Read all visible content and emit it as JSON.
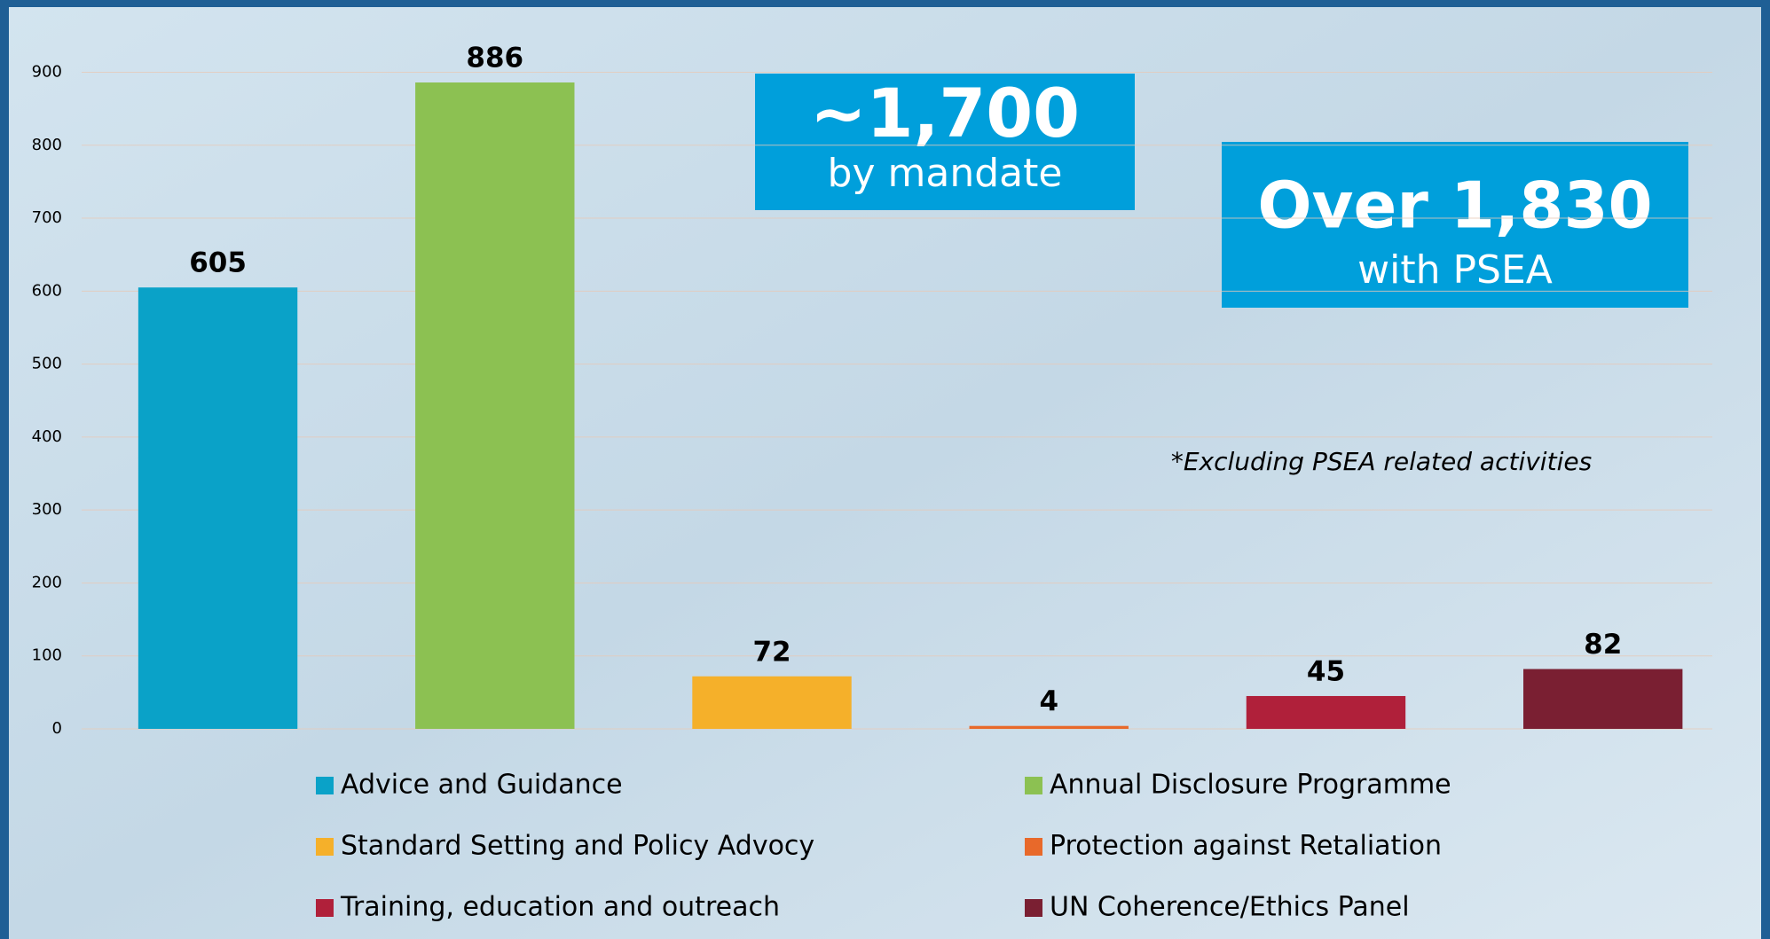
{
  "chart_data": {
    "type": "bar",
    "categories": [
      "Advice and Guidance",
      "Annual Disclosure Programme",
      "Standard Setting and Policy Advocy",
      "Protection against Retaliation",
      "Training, education and outreach",
      "UN Coherence/Ethics Panel"
    ],
    "values": [
      605,
      886,
      72,
      4,
      45,
      82
    ],
    "colors": [
      "#0aa2c8",
      "#8cc152",
      "#f5b02a",
      "#e8692a",
      "#b0203a",
      "#7a1f32"
    ],
    "ylim": [
      0,
      900
    ],
    "yticks": [
      0,
      100,
      200,
      300,
      400,
      500,
      600,
      700,
      800,
      900
    ],
    "grid": true,
    "annotations": [
      {
        "headline": "~1,700",
        "text": "by mandate"
      },
      {
        "headline": "Over 1,830",
        "text": "with PSEA"
      },
      {
        "text": "*Excluding PSEA related activities"
      }
    ]
  }
}
